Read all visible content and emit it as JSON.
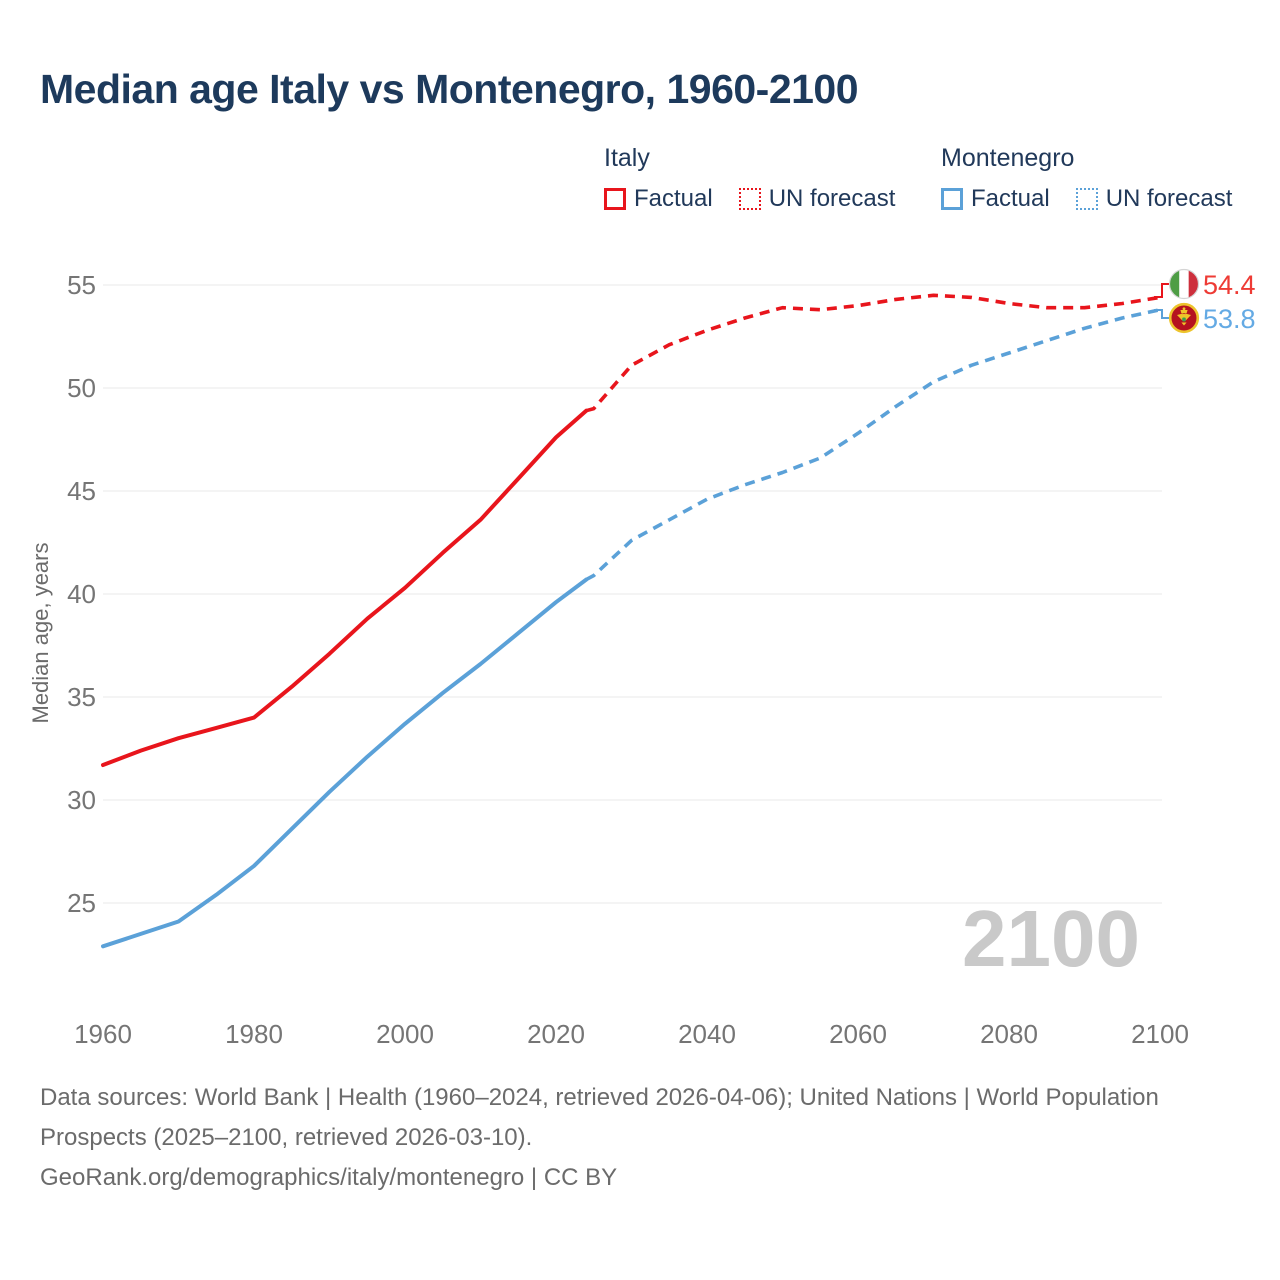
{
  "title": "Median age Italy vs Montenegro, 1960-2100",
  "legend": {
    "groups": [
      {
        "name": "Italy",
        "color": "#e8151c",
        "items": [
          {
            "label": "Factual",
            "style": "solid"
          },
          {
            "label": "UN forecast",
            "style": "dotted"
          }
        ]
      },
      {
        "name": "Montenegro",
        "color": "#5ba1d8",
        "items": [
          {
            "label": "Factual",
            "style": "solid"
          },
          {
            "label": "UN forecast",
            "style": "dotted"
          }
        ]
      }
    ]
  },
  "chart_data": {
    "type": "line",
    "title": "Median age Italy vs Montenegro, 1960-2100",
    "xlabel": "",
    "ylabel": "Median age, years",
    "xlim": [
      1960,
      2100
    ],
    "ylim": [
      22,
      56
    ],
    "grid": true,
    "legend_position": "top-right",
    "yticks": [
      25,
      30,
      35,
      40,
      45,
      50,
      55
    ],
    "xticks": [
      1960,
      1980,
      2000,
      2020,
      2040,
      2060,
      2080,
      2100
    ],
    "x_years": [
      1960,
      1965,
      1970,
      1975,
      1980,
      1985,
      1990,
      1995,
      2000,
      2005,
      2010,
      2015,
      2020,
      2024,
      2025,
      2030,
      2035,
      2040,
      2045,
      2050,
      2055,
      2060,
      2065,
      2070,
      2075,
      2080,
      2085,
      2090,
      2095,
      2100
    ],
    "series": [
      {
        "name": "Italy",
        "color": "#e8151c",
        "forecast_from": 2024,
        "values": [
          31.7,
          32.4,
          33.0,
          33.5,
          34.0,
          35.5,
          37.1,
          38.8,
          40.3,
          42.0,
          43.6,
          45.6,
          47.6,
          48.9,
          49.0,
          51.1,
          52.1,
          52.8,
          53.4,
          53.9,
          53.8,
          54.0,
          54.3,
          54.5,
          54.4,
          54.1,
          53.9,
          53.9,
          54.1,
          54.4
        ]
      },
      {
        "name": "Montenegro",
        "color": "#5ba1d8",
        "forecast_from": 2024,
        "values": [
          22.9,
          23.5,
          24.1,
          25.4,
          26.8,
          28.6,
          30.4,
          32.1,
          33.7,
          35.2,
          36.6,
          38.1,
          39.6,
          40.7,
          40.9,
          42.6,
          43.6,
          44.6,
          45.3,
          45.9,
          46.6,
          47.8,
          49.1,
          50.3,
          51.1,
          51.7,
          52.3,
          52.9,
          53.4,
          53.8
        ]
      }
    ]
  },
  "end_labels": [
    {
      "country": "Italy",
      "value": "54.4",
      "color": "#e8151c"
    },
    {
      "country": "Montenegro",
      "value": "53.8",
      "color": "#5ba1d8"
    }
  ],
  "watermark": "2100",
  "footer": {
    "sources": "Data sources: World Bank | Health (1960–2024, retrieved 2026-04-06); United Nations | World Population Prospects (2025–2100, retrieved 2026-03-10).",
    "attribution": "GeoRank.org/demographics/italy/montenegro | CC BY"
  }
}
